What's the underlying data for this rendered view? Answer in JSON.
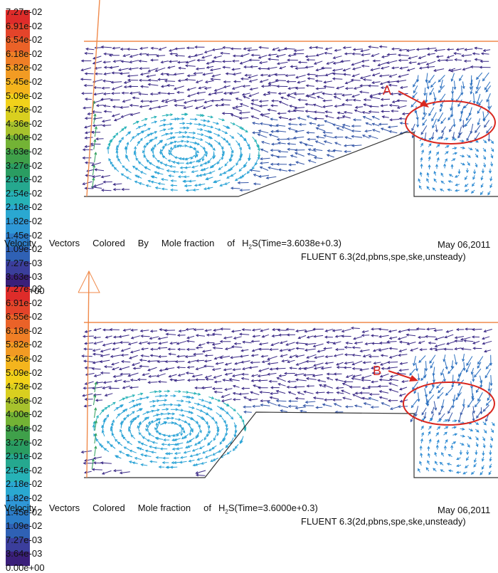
{
  "colors": {
    "scale": [
      "#3a1f7a",
      "#3b3e9c",
      "#2f61b5",
      "#2c7cc8",
      "#2f97d6",
      "#2aa8d1",
      "#27b2b7",
      "#25a88f",
      "#2a9d62",
      "#3fa04a",
      "#73b335",
      "#a7c22d",
      "#d9cf1f",
      "#f2d21a",
      "#f4b51d",
      "#f29b23",
      "#ef7f26",
      "#ea6228",
      "#e4442a",
      "#de2c2a"
    ],
    "outline": "#f08a4b",
    "annotation": "#d9271f",
    "wall": "#333333"
  },
  "panels": [
    {
      "legend": [
        "7.27e-02",
        "6.91e-02",
        "6.54e-02",
        "6.18e-02",
        "5.82e-02",
        "5.45e-02",
        "5.09e-02",
        "4.73e-02",
        "4.36e-02",
        "4.00e-02",
        "3.63e-02",
        "3.27e-02",
        "2.91e-02",
        "2.54e-02",
        "2.18e-02",
        "1.82e-02",
        "1.45e-02",
        "1.09e-02",
        "7.27e-03",
        "3.63e-03",
        "0.00e+00"
      ],
      "annotation_label": "A",
      "caption": {
        "word1": "Velocity",
        "word2": "Vectors",
        "word3": "Colored",
        "word4": "By",
        "word5": "Mole fraction",
        "word6": "of",
        "species": "H",
        "sub": "2",
        "rest": "S(Time=3.6038e+0.3)"
      },
      "date": "May 06,2011",
      "solver": "FLUENT 6.3(2d,pbns,spe,ske,unsteady)"
    },
    {
      "legend": [
        "7.27e-02",
        "6.91e-02",
        "6.55e-02",
        "6.18e-02",
        "5.82e-02",
        "5.46e-02",
        "5.09e-02",
        "4.73e-02",
        "4.36e-02",
        "4.00e-02",
        "3.64e-02",
        "3.27e-02",
        "2.91e-02",
        "2.54e-02",
        "2.18e-02",
        "1.82e-02",
        "1.45e-02",
        "1.09e-02",
        "7.27e-03",
        "3.64e-03",
        "0.00e+00"
      ],
      "annotation_label": "B",
      "caption": {
        "word1": "Velocity",
        "word2": "Vectors",
        "word3": "Colored",
        "word4": "",
        "word5": "Mole fraction",
        "word6": "of",
        "species": "H",
        "sub": "2",
        "rest": "S(Time=3.6000e+0.3)"
      },
      "date": "May 06,2011",
      "solver": "FLUENT 6.3(2d,pbns,spe,ske,unsteady)"
    }
  ]
}
